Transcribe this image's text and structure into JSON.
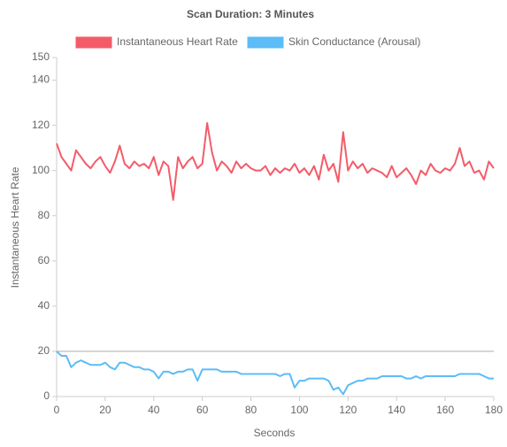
{
  "chart_data": {
    "type": "line",
    "title": "Scan Duration: 3 Minutes",
    "xlabel": "Seconds",
    "ylabel": "Instantaneous Heart Rate",
    "x": [
      0,
      2,
      4,
      6,
      8,
      10,
      12,
      14,
      16,
      18,
      20,
      22,
      24,
      26,
      28,
      30,
      32,
      34,
      36,
      38,
      40,
      42,
      44,
      46,
      48,
      50,
      52,
      54,
      56,
      58,
      60,
      62,
      64,
      66,
      68,
      70,
      72,
      74,
      76,
      78,
      80,
      82,
      84,
      86,
      88,
      90,
      92,
      94,
      96,
      98,
      100,
      102,
      104,
      106,
      108,
      110,
      112,
      114,
      116,
      118,
      120,
      122,
      124,
      126,
      128,
      130,
      132,
      134,
      136,
      138,
      140,
      142,
      144,
      146,
      148,
      150,
      152,
      154,
      156,
      158,
      160,
      162,
      164,
      166,
      168,
      170,
      172,
      174,
      176,
      178,
      180
    ],
    "series": [
      {
        "name": "Instantaneous Heart Rate",
        "color": "#f45b69",
        "values": [
          112,
          106,
          103,
          100,
          109,
          106,
          103,
          101,
          104,
          106,
          102,
          99,
          104,
          111,
          103,
          101,
          104,
          102,
          103,
          101,
          106,
          98,
          104,
          102,
          87,
          106,
          101,
          104,
          106,
          101,
          103,
          121,
          108,
          100,
          104,
          102,
          99,
          104,
          101,
          103,
          101,
          100,
          100,
          102,
          98,
          101,
          99,
          101,
          100,
          103,
          99,
          101,
          98,
          102,
          96,
          107,
          100,
          103,
          95,
          117,
          100,
          104,
          101,
          103,
          99,
          101,
          100,
          99,
          97,
          102,
          97,
          99,
          101,
          98,
          94,
          100,
          98,
          103,
          100,
          99,
          101,
          100,
          103,
          110,
          102,
          104,
          99,
          100,
          96,
          104,
          101
        ]
      },
      {
        "name": "Skin Conductance (Arousal)",
        "color": "#5cbcf7",
        "values": [
          20,
          18,
          18,
          13,
          15,
          16,
          15,
          14,
          14,
          14,
          15,
          13,
          12,
          15,
          15,
          14,
          13,
          13,
          12,
          12,
          11,
          8,
          11,
          11,
          10,
          11,
          11,
          12,
          12,
          7,
          12,
          12,
          12,
          12,
          11,
          11,
          11,
          11,
          10,
          10,
          10,
          10,
          10,
          10,
          10,
          10,
          9,
          10,
          10,
          4,
          7,
          7,
          8,
          8,
          8,
          8,
          7,
          3,
          4,
          1,
          5,
          6,
          7,
          7,
          8,
          8,
          8,
          9,
          9,
          9,
          9,
          9,
          8,
          8,
          9,
          8,
          9,
          9,
          9,
          9,
          9,
          9,
          9,
          10,
          10,
          10,
          10,
          10,
          9,
          8,
          8
        ]
      }
    ],
    "xlim": [
      0,
      180
    ],
    "xticks": [
      0,
      20,
      40,
      60,
      80,
      100,
      120,
      140,
      160,
      180
    ],
    "ylim": [
      0,
      150
    ],
    "yticks": [
      0,
      20,
      40,
      60,
      80,
      100,
      120,
      140,
      150
    ],
    "hlines": [
      20
    ],
    "legend": "top"
  }
}
